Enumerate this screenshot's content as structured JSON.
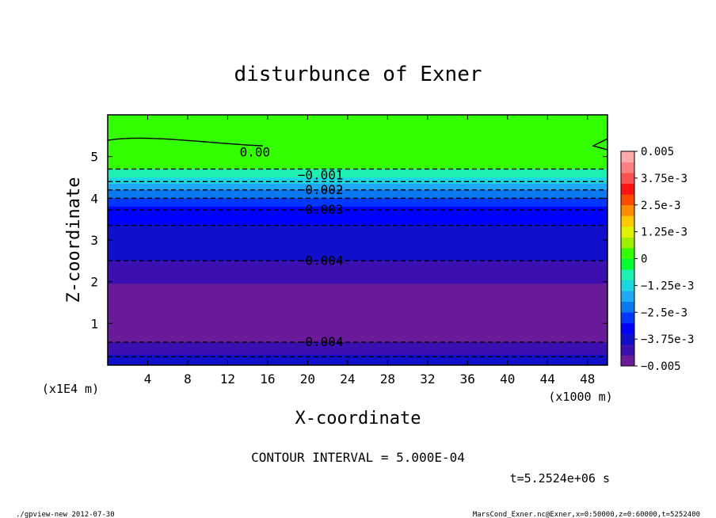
{
  "chart_data": {
    "type": "heatmap",
    "title": "disturbunce of Exner",
    "xlabel": "X-coordinate",
    "ylabel": "Z-coordinate",
    "x_unit": "(x1000 m)",
    "y_unit": "(x1E4 m)",
    "xlim": [
      0,
      50
    ],
    "ylim": [
      0,
      6
    ],
    "x_ticks": [
      4,
      8,
      12,
      16,
      20,
      24,
      28,
      32,
      36,
      40,
      44,
      48
    ],
    "y_ticks": [
      1,
      2,
      3,
      4,
      5
    ],
    "grid": false,
    "colorbar": {
      "position": "right",
      "min": -0.005,
      "max": 0.005,
      "tick_labels": [
        "0.005",
        "3.75e-3",
        "2.5e-3",
        "1.25e-3",
        "0",
        "−1.25e-3",
        "−2.5e-3",
        "−3.75e-3",
        "−0.005"
      ],
      "colors": [
        "#6a1b9a",
        "#3b0fb0",
        "#1010cc",
        "#0000ff",
        "#0038ff",
        "#0a78f0",
        "#1ea8f5",
        "#1ed6e0",
        "#1ef0b4",
        "#00ff2e",
        "#33ff00",
        "#9ef000",
        "#e0f000",
        "#ffc800",
        "#ff8c00",
        "#ff4a00",
        "#ff1414",
        "#ff5050",
        "#ff8080",
        "#ffaaaa"
      ]
    },
    "field_bands": [
      {
        "z_top": 6.0,
        "z_bottom": 4.7,
        "value": 0.0
      },
      {
        "z_top": 4.7,
        "z_bottom": 4.5,
        "value": -0.0009
      },
      {
        "z_top": 4.5,
        "z_bottom": 4.35,
        "value": -0.0014
      },
      {
        "z_top": 4.35,
        "z_bottom": 4.2,
        "value": -0.0018
      },
      {
        "z_top": 4.2,
        "z_bottom": 4.0,
        "value": -0.0023
      },
      {
        "z_top": 4.0,
        "z_bottom": 3.8,
        "value": -0.0028
      },
      {
        "z_top": 3.8,
        "z_bottom": 3.35,
        "value": -0.0033
      },
      {
        "z_top": 3.35,
        "z_bottom": 2.5,
        "value": -0.0037
      },
      {
        "z_top": 2.5,
        "z_bottom": 1.95,
        "value": -0.0042
      },
      {
        "z_top": 1.95,
        "z_bottom": 1.45,
        "value": -0.0046
      },
      {
        "z_top": 1.45,
        "z_bottom": 0.95,
        "value": -0.005
      },
      {
        "z_top": 0.95,
        "z_bottom": 0.55,
        "value": -0.0046
      },
      {
        "z_top": 0.55,
        "z_bottom": 0.25,
        "value": -0.0041
      },
      {
        "z_top": 0.25,
        "z_bottom": 0.0,
        "value": -0.0037
      }
    ],
    "contours": [
      {
        "level": "0.00",
        "z": 5.2,
        "style": "solid"
      },
      {
        "level": "-0.001",
        "z": 4.7,
        "style": "dashed"
      },
      {
        "level": "-0.001",
        "z": 4.4,
        "style": "dashed"
      },
      {
        "level": "-0.002",
        "z": 4.2,
        "style": "dashed"
      },
      {
        "level": "-0.002",
        "z": 4.0,
        "style": "dashed"
      },
      {
        "level": "-0.003",
        "z": 3.72,
        "style": "dashed"
      },
      {
        "level": "-0.003",
        "z": 3.35,
        "style": "dashed"
      },
      {
        "level": "-0.004",
        "z": 2.5,
        "style": "dashed"
      },
      {
        "level": "-0.004",
        "z": 0.55,
        "style": "dashed"
      },
      {
        "level": "-0.004",
        "z": 0.2,
        "style": "dashed"
      }
    ],
    "contour_labels": [
      {
        "text": "0.00",
        "x": 13.2,
        "z": 5.1
      },
      {
        "text": "−0.001",
        "x": 19.0,
        "z": 4.55
      },
      {
        "text": "−0.002",
        "x": 19.0,
        "z": 4.2
      },
      {
        "text": "−0.003",
        "x": 19.0,
        "z": 3.72
      },
      {
        "text": "−0.004",
        "x": 19.0,
        "z": 2.5
      },
      {
        "text": "−0.004",
        "x": 19.0,
        "z": 0.55
      }
    ],
    "annotations": {
      "contour_interval": "CONTOUR INTERVAL = 5.000E-04",
      "time": "t=5.2524e+06 s",
      "footer_left": "./gpview-new  2012-07-30",
      "footer_right": "MarsCond_Exner.nc@Exner,x=0:50000,z=0:60000,t=5252400"
    }
  }
}
